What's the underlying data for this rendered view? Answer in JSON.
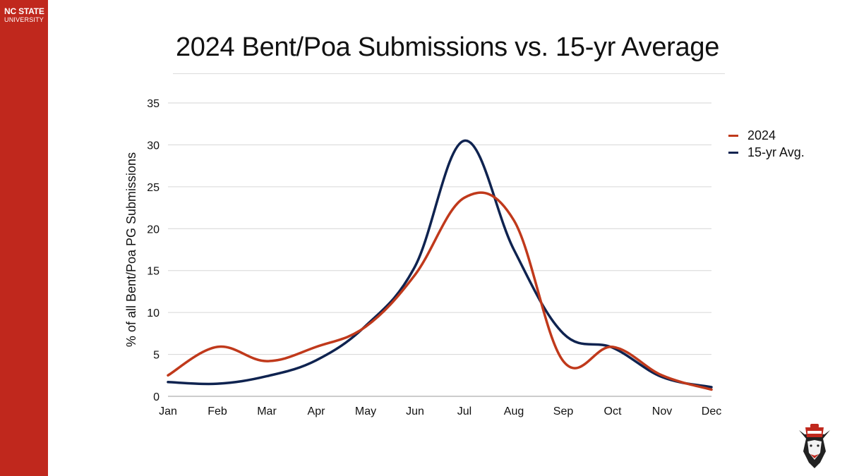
{
  "brand": {
    "line1": "NC STATE",
    "line2": "UNIVERSITY",
    "color": "#c0281d",
    "mascot_icon": "wolf-mascot-logo"
  },
  "chart_data": {
    "type": "line",
    "title": "2024 Bent/Poa Submissions vs. 15-yr Average",
    "xlabel": "",
    "ylabel": "% of all Bent/Poa PG Submissions",
    "categories": [
      "Jan",
      "Feb",
      "Mar",
      "Apr",
      "May",
      "Jun",
      "Jul",
      "Aug",
      "Sep",
      "Oct",
      "Nov",
      "Dec"
    ],
    "series": [
      {
        "name": "2024",
        "color": "#c0391b",
        "values": [
          2.5,
          5.9,
          4.2,
          5.9,
          8.3,
          14.5,
          23.7,
          21.0,
          4.2,
          5.9,
          2.5,
          0.8
        ]
      },
      {
        "name": "15-yr Avg.",
        "color": "#0f2350",
        "values": [
          1.7,
          1.5,
          2.4,
          4.3,
          8.4,
          15.5,
          30.5,
          17.5,
          7.5,
          5.8,
          2.3,
          1.1
        ]
      }
    ],
    "ylim": [
      0,
      35
    ],
    "yticks": [
      0,
      5,
      10,
      15,
      20,
      25,
      30,
      35
    ],
    "grid": true,
    "smooth": true,
    "legend_position": "right"
  },
  "legend": {
    "items": [
      {
        "label": "2024",
        "color": "#c0391b"
      },
      {
        "label": "15-yr Avg.",
        "color": "#0f2350"
      }
    ]
  }
}
